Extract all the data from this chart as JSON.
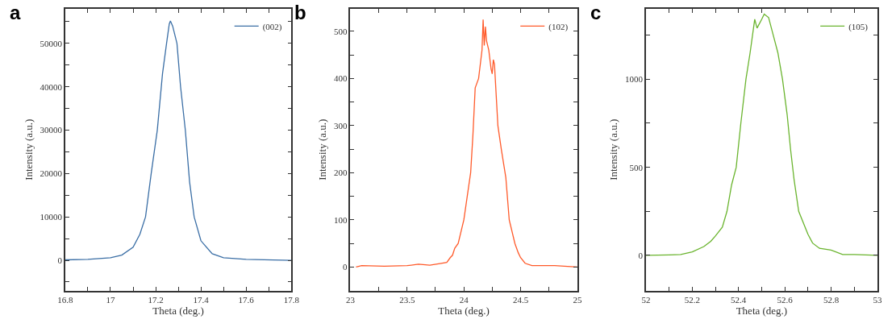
{
  "chart_data": [
    {
      "type": "line",
      "title": "a",
      "xlabel": "Theta (deg.)",
      "ylabel": "Intensity (a.u.)",
      "legend": "top right",
      "marker": "none",
      "line_style": "solid",
      "xlim": [
        16.8,
        17.8
      ],
      "ylim": [
        -7000,
        58000
      ],
      "xticks": [
        16.8,
        {
          "value": 16.9,
          "label": null
        },
        17,
        {
          "value": 17.1,
          "label": null
        },
        17.2,
        {
          "value": 17.3,
          "label": null
        },
        17.4,
        {
          "value": 17.5,
          "label": null
        },
        17.6,
        {
          "value": 17.7,
          "label": null
        },
        17.8
      ],
      "yticks": [
        {
          "value": -5000,
          "label": null
        },
        0,
        {
          "value": 5000,
          "label": null
        },
        10000,
        {
          "value": 15000,
          "label": null
        },
        20000,
        {
          "value": 25000,
          "label": null
        },
        30000,
        {
          "value": 35000,
          "label": null
        },
        40000,
        {
          "value": 45000,
          "label": null
        },
        50000,
        {
          "value": 55000,
          "label": null
        }
      ],
      "x": [
        16.8,
        16.9,
        17.0,
        17.05,
        17.1,
        17.13,
        17.155,
        17.18,
        17.207,
        17.23,
        17.248,
        17.26,
        17.265,
        17.275,
        17.294,
        17.31,
        17.331,
        17.35,
        17.37,
        17.4,
        17.45,
        17.5,
        17.6,
        17.8
      ],
      "series": [
        {
          "name": "(002)",
          "color": "#3a6ea5",
          "values": [
            100,
            200,
            600,
            1200,
            3000,
            6000,
            10000,
            20000,
            30000,
            43000,
            50000,
            54500,
            55200,
            54000,
            50000,
            40000,
            30000,
            18000,
            10000,
            4500,
            1500,
            600,
            200,
            0
          ]
        }
      ]
    },
    {
      "type": "line",
      "title": "b",
      "xlabel": "Theta (deg.)",
      "ylabel": "Intensity (a.u.)",
      "legend": "top right",
      "marker": "none",
      "line_style": "solid",
      "xlim": [
        23,
        25
      ],
      "ylim": [
        -50,
        548
      ],
      "xticks": [
        23,
        {
          "value": 23.25,
          "label": null
        },
        23.5,
        {
          "value": 23.75,
          "label": null
        },
        24,
        {
          "value": 24.25,
          "label": null
        },
        24.5,
        {
          "value": 24.75,
          "label": null
        },
        25
      ],
      "yticks": [
        0,
        {
          "value": 50,
          "label": null
        },
        100,
        {
          "value": 150,
          "label": null
        },
        200,
        {
          "value": 250,
          "label": null
        },
        300,
        {
          "value": 350,
          "label": null
        },
        400,
        {
          "value": 450,
          "label": null
        },
        500
      ],
      "x": [
        23.05,
        23.1,
        23.3,
        23.5,
        23.6,
        23.7,
        23.8,
        23.85,
        23.88,
        23.9,
        23.92,
        23.95,
        23.98,
        24.0,
        24.03,
        24.06,
        24.08,
        24.1,
        24.13,
        24.16,
        24.17,
        24.18,
        24.19,
        24.2,
        24.22,
        24.24,
        24.25,
        24.26,
        24.27,
        24.3,
        24.33,
        24.37,
        24.4,
        24.45,
        24.48,
        24.5,
        24.54,
        24.6,
        24.8,
        25.0
      ],
      "series": [
        {
          "name": "(102)",
          "color": "#ff5a2a",
          "values": [
            0,
            3,
            2,
            3,
            6,
            4,
            8,
            10,
            20,
            25,
            40,
            50,
            80,
            100,
            150,
            200,
            280,
            380,
            400,
            460,
            525,
            470,
            510,
            480,
            460,
            420,
            410,
            440,
            430,
            300,
            250,
            190,
            100,
            50,
            30,
            20,
            8,
            3,
            3,
            0
          ]
        }
      ]
    },
    {
      "type": "line",
      "title": "c",
      "xlabel": "Theta (deg.)",
      "ylabel": "Intensity (a.u.)",
      "legend": "top right",
      "marker": "none",
      "line_style": "solid",
      "xlim": [
        52,
        53
      ],
      "ylim": [
        -200,
        1400
      ],
      "xticks": [
        52,
        {
          "value": 52.1,
          "label": null
        },
        52.2,
        {
          "value": 52.3,
          "label": null
        },
        52.4,
        {
          "value": 52.5,
          "label": null
        },
        52.6,
        {
          "value": 52.7,
          "label": null
        },
        52.8,
        {
          "value": 52.9,
          "label": null
        },
        53
      ],
      "yticks": [
        0,
        {
          "value": 250,
          "label": null
        },
        500,
        {
          "value": 750,
          "label": null
        },
        1000,
        {
          "value": 1250,
          "label": null
        }
      ],
      "x": [
        52.0,
        52.1,
        52.15,
        52.2,
        52.25,
        52.28,
        52.3,
        52.33,
        52.35,
        52.37,
        52.39,
        52.41,
        52.432,
        52.45,
        52.47,
        52.48,
        52.5,
        52.511,
        52.53,
        52.55,
        52.57,
        52.59,
        52.61,
        52.625,
        52.64,
        52.66,
        52.7,
        52.72,
        52.75,
        52.8,
        52.85,
        52.9,
        53.0
      ],
      "series": [
        {
          "name": "(105)",
          "color": "#6ab42e",
          "values": [
            0,
            3,
            5,
            20,
            50,
            80,
            110,
            160,
            250,
            400,
            500,
            750,
            1000,
            1150,
            1340,
            1290,
            1340,
            1370,
            1350,
            1250,
            1150,
            1000,
            800,
            600,
            430,
            250,
            120,
            70,
            40,
            30,
            5,
            5,
            0
          ]
        }
      ]
    }
  ]
}
